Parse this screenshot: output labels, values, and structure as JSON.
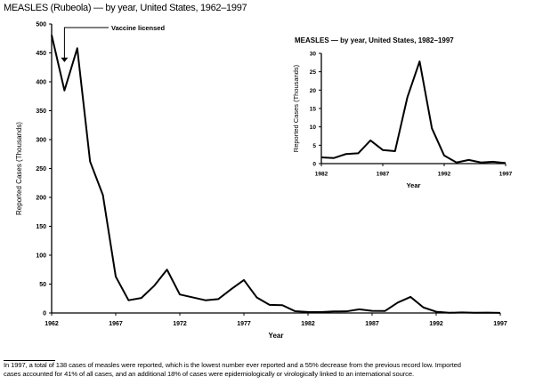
{
  "title": "MEASLES (Rubeola) — by year, United States, 1962–1997",
  "footnote": [
    "In 1997, a total of 138 cases of measles were reported, which is the lowest number ever reported and a 55% decrease from the previous record low. Imported",
    "cases accounted for 41% of all cases, and an additional 18% of cases were epidemiologically or virologically linked to an international source."
  ],
  "chart_data": [
    {
      "type": "line",
      "title": "",
      "xlabel": "Year",
      "ylabel": "Reported Cases (Thousands)",
      "xlim": [
        1962,
        1997
      ],
      "ylim": [
        0,
        500
      ],
      "xticks": [
        1962,
        1967,
        1972,
        1977,
        1982,
        1987,
        1992,
        1997
      ],
      "yticks": [
        0,
        50,
        100,
        150,
        200,
        250,
        300,
        350,
        400,
        450,
        500
      ],
      "annotation": {
        "text": "Vaccine licensed",
        "x": 1963
      },
      "x": [
        1962,
        1963,
        1964,
        1965,
        1966,
        1967,
        1968,
        1969,
        1970,
        1971,
        1972,
        1973,
        1974,
        1975,
        1976,
        1977,
        1978,
        1979,
        1980,
        1981,
        1982,
        1983,
        1984,
        1985,
        1986,
        1987,
        1988,
        1989,
        1990,
        1991,
        1992,
        1993,
        1994,
        1995,
        1996,
        1997
      ],
      "values": [
        481,
        385,
        458,
        262,
        204,
        63,
        22,
        26,
        47,
        75,
        32,
        27,
        22,
        24,
        41,
        57,
        27,
        14,
        13.5,
        3,
        1.7,
        1.5,
        2.6,
        2.8,
        6.3,
        3.7,
        3.4,
        18,
        27.8,
        9.6,
        2.2,
        0.3,
        1.0,
        0.3,
        0.5,
        0.14
      ]
    },
    {
      "type": "line",
      "title": "MEASLES — by year, United States, 1982–1997",
      "xlabel": "Year",
      "ylabel": "Reported Cases (Thousands)",
      "xlim": [
        1982,
        1997
      ],
      "ylim": [
        0,
        30
      ],
      "xticks": [
        1982,
        1987,
        1992,
        1997
      ],
      "yticks": [
        0,
        5,
        10,
        15,
        20,
        25,
        30
      ],
      "x": [
        1982,
        1983,
        1984,
        1985,
        1986,
        1987,
        1988,
        1989,
        1990,
        1991,
        1992,
        1993,
        1994,
        1995,
        1996,
        1997
      ],
      "values": [
        1.7,
        1.5,
        2.6,
        2.8,
        6.3,
        3.7,
        3.4,
        18,
        27.8,
        9.6,
        2.2,
        0.3,
        1.0,
        0.3,
        0.5,
        0.14
      ]
    }
  ]
}
